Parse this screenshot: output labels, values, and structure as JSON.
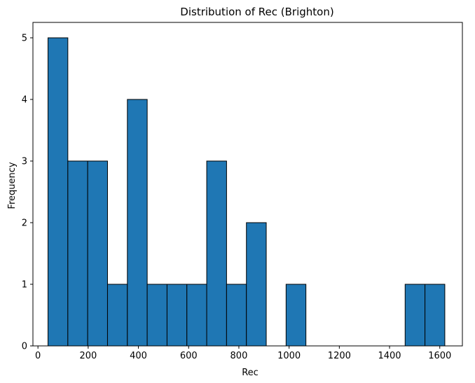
{
  "chart_data": {
    "type": "bar",
    "title": "Distribution of Rec (Brighton)",
    "xlabel": "Rec",
    "ylabel": "Frequency",
    "xlim": [
      -20,
      1690
    ],
    "ylim": [
      0,
      5.25
    ],
    "bin_edges": [
      40,
      119,
      198,
      277,
      356,
      435,
      514,
      593,
      672,
      751,
      830,
      909,
      988,
      1067,
      1146,
      1225,
      1304,
      1383,
      1462,
      1541,
      1620
    ],
    "values": [
      5,
      3,
      3,
      1,
      4,
      1,
      1,
      1,
      3,
      1,
      2,
      0,
      1,
      0,
      0,
      0,
      0,
      0,
      1,
      1
    ],
    "x_ticks": [
      0,
      200,
      400,
      600,
      800,
      1000,
      1200,
      1400,
      1600
    ],
    "y_ticks": [
      0,
      1,
      2,
      3,
      4,
      5
    ],
    "bar_color": "#1f77b4",
    "edge_color": "#000000",
    "grid": false,
    "legend": false
  }
}
